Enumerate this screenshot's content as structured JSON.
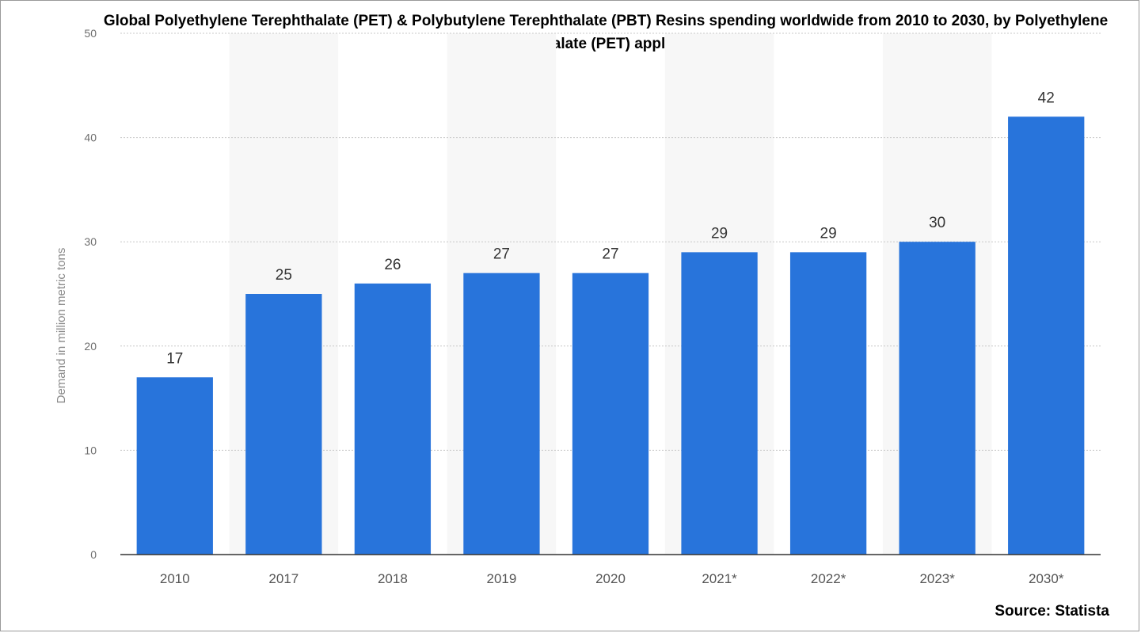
{
  "chart_data": {
    "type": "bar",
    "title": "Global Polyethylene Terephthalate (PET) & Polybutylene Terephthalate (PBT) Resins spending worldwide from 2010 to 2030, by Polyethylene Terephthalate (PET) applications",
    "ylabel": "Demand in million metric tons",
    "xlabel": "",
    "categories": [
      "2010",
      "2017",
      "2018",
      "2019",
      "2020",
      "2021*",
      "2022*",
      "2023*",
      "2030*"
    ],
    "values": [
      17,
      25,
      26,
      27,
      27,
      29,
      29,
      30,
      42
    ],
    "data_labels": [
      "17",
      "25",
      "26",
      "27",
      "27",
      "29",
      "29",
      "30",
      "42"
    ],
    "ylim": [
      0,
      50
    ],
    "yticks": [
      "0",
      "10",
      "20",
      "30",
      "40",
      "50"
    ],
    "grid": true,
    "bar_color": "#2874db",
    "source": "Source: Statista"
  }
}
